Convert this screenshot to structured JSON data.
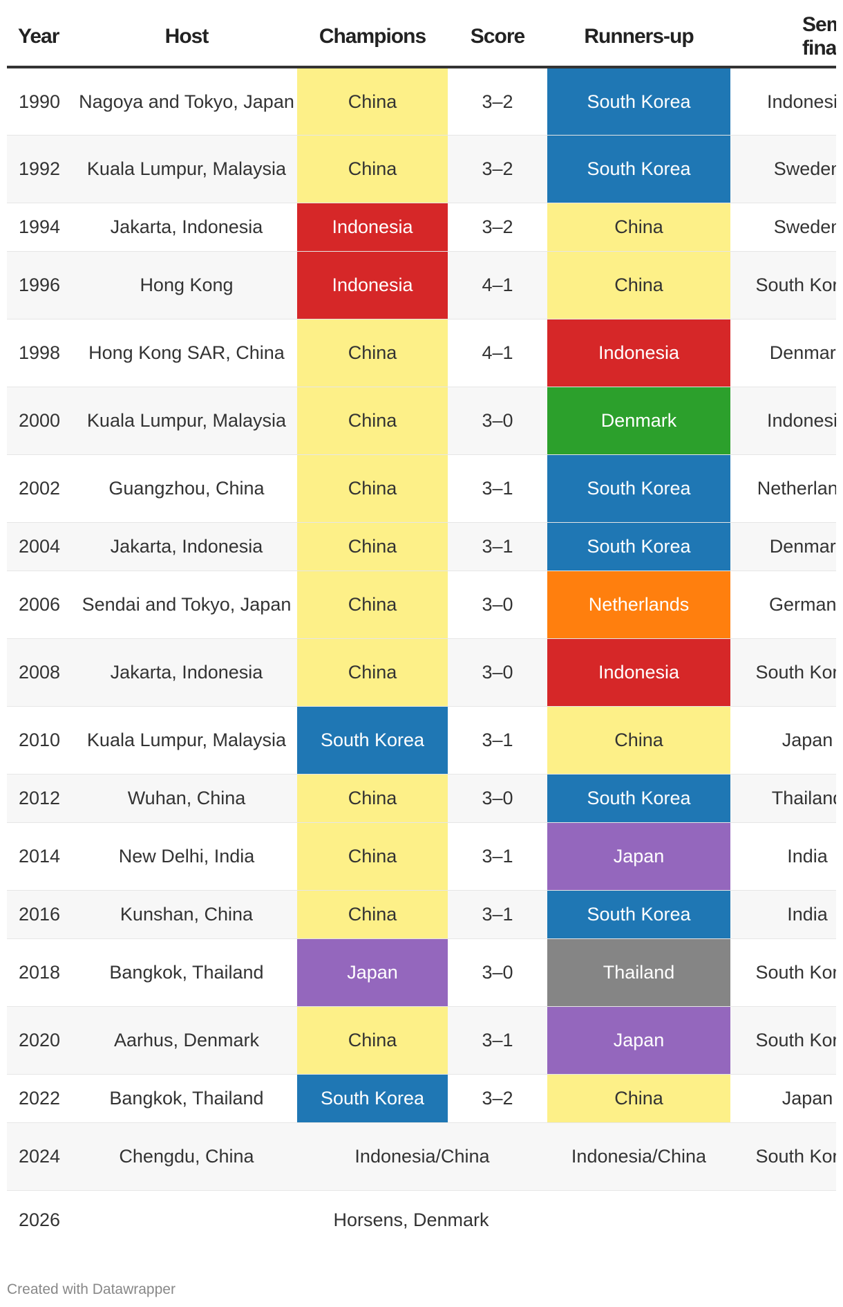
{
  "headers": {
    "year": "Year",
    "host": "Host",
    "champions": "Champions",
    "score": "Score",
    "runners_up": "Runners-up",
    "semi": "Semi-finalists"
  },
  "rows": [
    {
      "year": "1990",
      "host": "Nagoya and Tokyo, Japan",
      "champions": "China",
      "score": "3–2",
      "runners_up": "South Korea",
      "semi": "Indonesia"
    },
    {
      "year": "1992",
      "host": "Kuala Lumpur, Malaysia",
      "champions": "China",
      "score": "3–2",
      "runners_up": "South Korea",
      "semi": "Sweden"
    },
    {
      "year": "1994",
      "host": "Jakarta, Indonesia",
      "champions": "Indonesia",
      "score": "3–2",
      "runners_up": "China",
      "semi": "Sweden"
    },
    {
      "year": "1996",
      "host": "Hong Kong",
      "champions": "Indonesia",
      "score": "4–1",
      "runners_up": "China",
      "semi": "South Korea"
    },
    {
      "year": "1998",
      "host": "Hong Kong SAR, China",
      "champions": "China",
      "score": "4–1",
      "runners_up": "Indonesia",
      "semi": "Denmark"
    },
    {
      "year": "2000",
      "host": "Kuala Lumpur, Malaysia",
      "champions": "China",
      "score": "3–0",
      "runners_up": "Denmark",
      "semi": "Indonesia"
    },
    {
      "year": "2002",
      "host": "Guangzhou, China",
      "champions": "China",
      "score": "3–1",
      "runners_up": "South Korea",
      "semi": "Netherlands"
    },
    {
      "year": "2004",
      "host": "Jakarta, Indonesia",
      "champions": "China",
      "score": "3–1",
      "runners_up": "South Korea",
      "semi": "Denmark"
    },
    {
      "year": "2006",
      "host": "Sendai and Tokyo, Japan",
      "champions": "China",
      "score": "3–0",
      "runners_up": "Netherlands",
      "semi": "Germany"
    },
    {
      "year": "2008",
      "host": "Jakarta, Indonesia",
      "champions": "China",
      "score": "3–0",
      "runners_up": "Indonesia",
      "semi": "South Korea"
    },
    {
      "year": "2010",
      "host": "Kuala Lumpur, Malaysia",
      "champions": "South Korea",
      "score": "3–1",
      "runners_up": "China",
      "semi": "Japan"
    },
    {
      "year": "2012",
      "host": "Wuhan, China",
      "champions": "China",
      "score": "3–0",
      "runners_up": "South Korea",
      "semi": "Thailand"
    },
    {
      "year": "2014",
      "host": "New Delhi, India",
      "champions": "China",
      "score": "3–1",
      "runners_up": "Japan",
      "semi": "India"
    },
    {
      "year": "2016",
      "host": "Kunshan, China",
      "champions": "China",
      "score": "3–1",
      "runners_up": "South Korea",
      "semi": "India"
    },
    {
      "year": "2018",
      "host": "Bangkok, Thailand",
      "champions": "Japan",
      "score": "3–0",
      "runners_up": "Thailand",
      "semi": "South Korea"
    },
    {
      "year": "2020",
      "host": "Aarhus, Denmark",
      "champions": "China",
      "score": "3–1",
      "runners_up": "Japan",
      "semi": "South Korea"
    },
    {
      "year": "2022",
      "host": "Bangkok, Thailand",
      "champions": "South Korea",
      "score": "3–2",
      "runners_up": "China",
      "semi": "Japan"
    }
  ],
  "row_2024": {
    "year": "2024",
    "host": "Chengdu, China",
    "champions": "Indonesia/China",
    "runners_up": "Indonesia/China",
    "semi": "South Korea"
  },
  "row_2026": {
    "year": "2026",
    "host": "Horsens, Denmark"
  },
  "country_colors": {
    "China": "#fdf088",
    "South Korea": "#1f77b4",
    "Indonesia": "#d62728",
    "Denmark": "#2ca02c",
    "Netherlands": "#ff7f0e",
    "Japan": "#9467bd",
    "Thailand": "#858585"
  },
  "footer": {
    "credit": "Created with Datawrapper"
  }
}
